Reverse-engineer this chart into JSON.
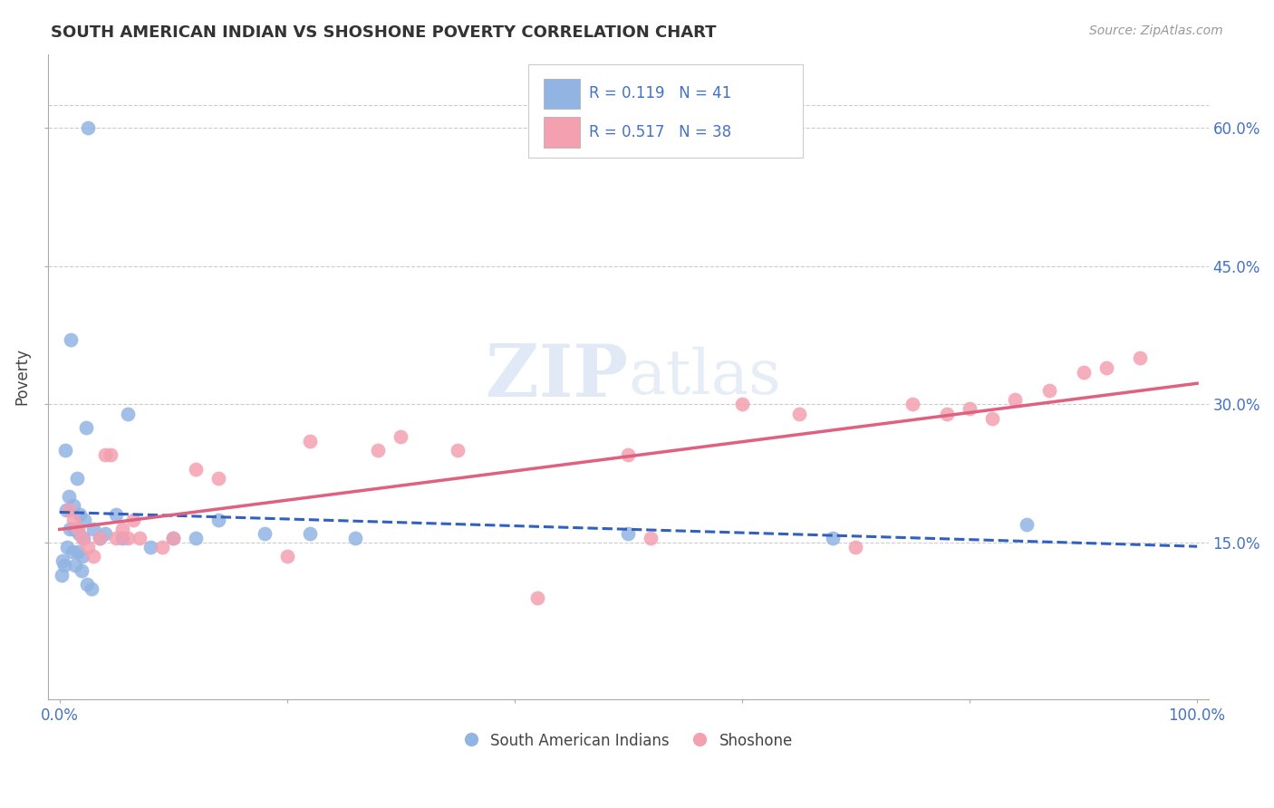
{
  "title": "SOUTH AMERICAN INDIAN VS SHOSHONE POVERTY CORRELATION CHART",
  "source": "Source: ZipAtlas.com",
  "ylabel": "Poverty",
  "r_blue": 0.119,
  "n_blue": 41,
  "r_pink": 0.517,
  "n_pink": 38,
  "blue_color": "#92B4E3",
  "pink_color": "#F4A0B0",
  "blue_line_color": "#3060C0",
  "pink_line_color": "#E06080",
  "watermark_zip": "ZIP",
  "watermark_atlas": "atlas",
  "blue_scatter_x": [
    0.025,
    0.01,
    0.005,
    0.008,
    0.012,
    0.018,
    0.022,
    0.015,
    0.006,
    0.009,
    0.013,
    0.017,
    0.021,
    0.007,
    0.011,
    0.016,
    0.02,
    0.003,
    0.004,
    0.014,
    0.019,
    0.023,
    0.002,
    0.024,
    0.028,
    0.03,
    0.035,
    0.04,
    0.05,
    0.055,
    0.06,
    0.08,
    0.1,
    0.12,
    0.14,
    0.18,
    0.22,
    0.26,
    0.5,
    0.68,
    0.85
  ],
  "blue_scatter_y": [
    0.6,
    0.37,
    0.25,
    0.2,
    0.19,
    0.18,
    0.175,
    0.22,
    0.185,
    0.165,
    0.165,
    0.16,
    0.155,
    0.145,
    0.14,
    0.14,
    0.135,
    0.13,
    0.125,
    0.125,
    0.12,
    0.275,
    0.115,
    0.105,
    0.1,
    0.165,
    0.155,
    0.16,
    0.18,
    0.155,
    0.29,
    0.145,
    0.155,
    0.155,
    0.175,
    0.16,
    0.16,
    0.155,
    0.16,
    0.155,
    0.17
  ],
  "pink_scatter_x": [
    0.008,
    0.012,
    0.016,
    0.02,
    0.025,
    0.03,
    0.035,
    0.04,
    0.045,
    0.05,
    0.055,
    0.06,
    0.065,
    0.07,
    0.09,
    0.1,
    0.12,
    0.14,
    0.2,
    0.22,
    0.28,
    0.3,
    0.35,
    0.42,
    0.5,
    0.52,
    0.6,
    0.65,
    0.7,
    0.75,
    0.78,
    0.8,
    0.82,
    0.84,
    0.87,
    0.9,
    0.92,
    0.95
  ],
  "pink_scatter_y": [
    0.185,
    0.175,
    0.165,
    0.155,
    0.145,
    0.135,
    0.155,
    0.245,
    0.245,
    0.155,
    0.165,
    0.155,
    0.175,
    0.155,
    0.145,
    0.155,
    0.23,
    0.22,
    0.135,
    0.26,
    0.25,
    0.265,
    0.25,
    0.09,
    0.245,
    0.155,
    0.3,
    0.29,
    0.145,
    0.3,
    0.29,
    0.295,
    0.285,
    0.305,
    0.315,
    0.335,
    0.34,
    0.35
  ]
}
